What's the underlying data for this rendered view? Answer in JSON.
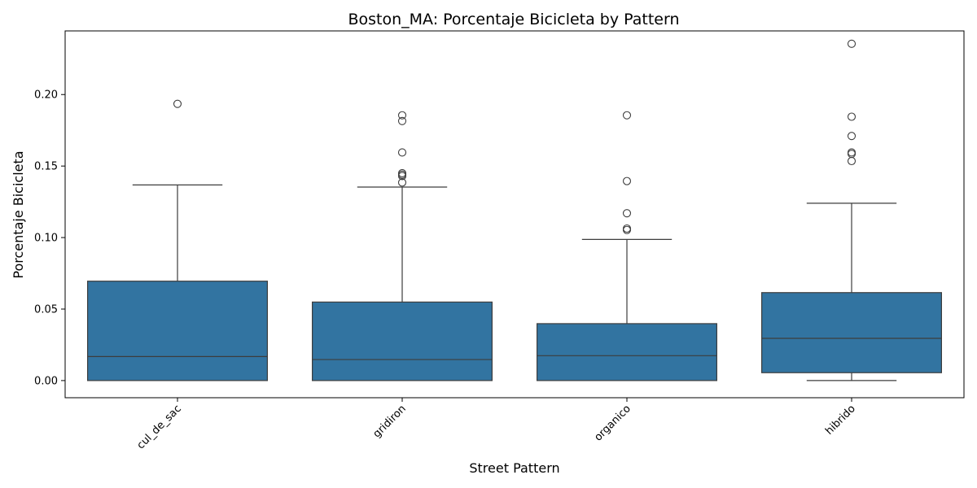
{
  "chart_data": {
    "type": "box",
    "title": "Boston_MA: Porcentaje Bicicleta by Pattern",
    "xlabel": "Street Pattern",
    "ylabel": "Porcentaje Bicicleta",
    "ylim": [
      -0.012,
      0.2445
    ],
    "yticks": [
      0.0,
      0.05,
      0.1,
      0.15,
      0.2
    ],
    "ytick_labels": [
      "0.00",
      "0.05",
      "0.10",
      "0.15",
      "0.20"
    ],
    "grid": false,
    "colors": {
      "box_fill": "#3274a1",
      "line": "#3d3d3d"
    },
    "categories": [
      "cul_de_sac",
      "gridiron",
      "organico",
      "hibrido"
    ],
    "boxes": [
      {
        "category": "cul_de_sac",
        "whislo": 0.0,
        "q1": 0.0,
        "median": 0.0168,
        "q3": 0.0695,
        "whishi": 0.1368,
        "fliers": [
          0.1935
        ]
      },
      {
        "category": "gridiron",
        "whislo": 0.0,
        "q1": 0.0,
        "median": 0.0147,
        "q3": 0.0549,
        "whishi": 0.1353,
        "fliers": [
          0.1385,
          0.143,
          0.144,
          0.145,
          0.1595,
          0.1815,
          0.1855
        ]
      },
      {
        "category": "organico",
        "whislo": 0.0,
        "q1": 0.0,
        "median": 0.0174,
        "q3": 0.0398,
        "whishi": 0.0987,
        "fliers": [
          0.1053,
          0.1063,
          0.117,
          0.1395,
          0.1855
        ]
      },
      {
        "category": "hibrido",
        "whislo": 0.0,
        "q1": 0.0055,
        "median": 0.0295,
        "q3": 0.0615,
        "whishi": 0.124,
        "fliers": [
          0.1535,
          0.1585,
          0.1595,
          0.171,
          0.1845,
          0.2355
        ]
      }
    ]
  }
}
